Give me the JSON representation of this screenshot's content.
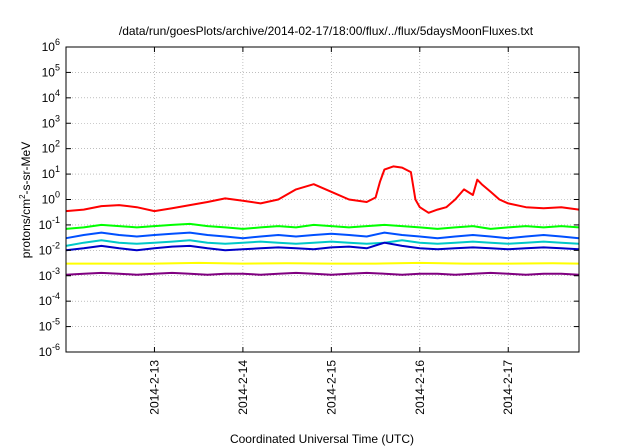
{
  "chart_data": {
    "type": "line",
    "title": "/data/run/goesPlots/archive/2014-02-17/18:00/flux/../flux/5daysMoonFluxes.txt",
    "xlabel": "Coordinated Universal Time (UTC)",
    "ylabel": {
      "base": "protons/cm",
      "sup": "2",
      "rest": "-s-sr-MeV"
    },
    "y_scale": "log",
    "ylim_exp": [
      -6,
      6
    ],
    "xlim_days": [
      12.0,
      17.8
    ],
    "x_ticks": [
      {
        "day": 13,
        "label": "2014-2-13"
      },
      {
        "day": 14,
        "label": "2014-2-14"
      },
      {
        "day": 15,
        "label": "2014-2-15"
      },
      {
        "day": 16,
        "label": "2014-2-16"
      },
      {
        "day": 17,
        "label": "2014-2-17"
      }
    ],
    "y_ticks": [
      {
        "exp": -6,
        "base": "10",
        "sup": "-6"
      },
      {
        "exp": -5,
        "base": "10",
        "sup": "-5"
      },
      {
        "exp": -4,
        "base": "10",
        "sup": "-4"
      },
      {
        "exp": -3,
        "base": "10",
        "sup": "-3"
      },
      {
        "exp": -2,
        "base": "10",
        "sup": "-2"
      },
      {
        "exp": -1,
        "base": "10",
        "sup": "-1"
      },
      {
        "exp": 0,
        "base": "10",
        "sup": "0"
      },
      {
        "exp": 1,
        "base": "10",
        "sup": "1"
      },
      {
        "exp": 2,
        "base": "10",
        "sup": "2"
      },
      {
        "exp": 3,
        "base": "10",
        "sup": "3"
      },
      {
        "exp": 4,
        "base": "10",
        "sup": "4"
      },
      {
        "exp": 5,
        "base": "10",
        "sup": "5"
      },
      {
        "exp": 6,
        "base": "10",
        "sup": "6"
      }
    ],
    "grid": true,
    "legend": "none",
    "series": [
      {
        "color": "#ff0000",
        "x": [
          12.0,
          12.2,
          12.4,
          12.6,
          12.8,
          13.0,
          13.2,
          13.4,
          13.6,
          13.8,
          14.0,
          14.2,
          14.4,
          14.6,
          14.8,
          15.0,
          15.2,
          15.4,
          15.5,
          15.55,
          15.6,
          15.7,
          15.8,
          15.9,
          15.95,
          16.0,
          16.1,
          16.2,
          16.3,
          16.4,
          16.5,
          16.6,
          16.65,
          16.7,
          16.8,
          16.9,
          17.0,
          17.2,
          17.4,
          17.6,
          17.8
        ],
        "y": [
          0.35,
          0.4,
          0.55,
          0.6,
          0.5,
          0.35,
          0.45,
          0.6,
          0.8,
          1.1,
          0.9,
          0.7,
          1.0,
          2.5,
          4.0,
          2.0,
          1.0,
          0.8,
          1.2,
          5.0,
          15,
          20,
          18,
          12,
          1.0,
          0.5,
          0.3,
          0.4,
          0.5,
          1.0,
          2.5,
          1.5,
          6.0,
          4.0,
          2.0,
          1.0,
          0.7,
          0.5,
          0.45,
          0.5,
          0.4
        ]
      },
      {
        "color": "#00ff00",
        "x": [
          12.0,
          12.2,
          12.4,
          12.6,
          12.8,
          13.0,
          13.2,
          13.4,
          13.6,
          13.8,
          14.0,
          14.2,
          14.4,
          14.6,
          14.8,
          15.0,
          15.2,
          15.4,
          15.6,
          15.8,
          16.0,
          16.2,
          16.4,
          16.6,
          16.8,
          17.0,
          17.2,
          17.4,
          17.6,
          17.8
        ],
        "y": [
          0.07,
          0.08,
          0.1,
          0.09,
          0.08,
          0.09,
          0.1,
          0.11,
          0.09,
          0.08,
          0.07,
          0.08,
          0.09,
          0.08,
          0.1,
          0.09,
          0.08,
          0.09,
          0.1,
          0.09,
          0.08,
          0.07,
          0.08,
          0.09,
          0.07,
          0.08,
          0.09,
          0.08,
          0.09,
          0.08
        ]
      },
      {
        "color": "#00c8c8",
        "x": [
          12.0,
          12.2,
          12.4,
          12.6,
          12.8,
          13.0,
          13.2,
          13.4,
          13.6,
          13.8,
          14.0,
          14.2,
          14.4,
          14.6,
          14.8,
          15.0,
          15.2,
          15.4,
          15.6,
          15.8,
          16.0,
          16.2,
          16.4,
          16.6,
          16.8,
          17.0,
          17.2,
          17.4,
          17.6,
          17.8
        ],
        "y": [
          0.015,
          0.02,
          0.025,
          0.02,
          0.018,
          0.02,
          0.022,
          0.025,
          0.02,
          0.018,
          0.02,
          0.022,
          0.02,
          0.018,
          0.02,
          0.022,
          0.02,
          0.018,
          0.02,
          0.025,
          0.02,
          0.018,
          0.02,
          0.022,
          0.02,
          0.018,
          0.02,
          0.022,
          0.02,
          0.018
        ]
      },
      {
        "color": "#0050ff",
        "x": [
          12.0,
          12.2,
          12.4,
          12.6,
          12.8,
          13.0,
          13.2,
          13.4,
          13.6,
          13.8,
          14.0,
          14.2,
          14.4,
          14.6,
          14.8,
          15.0,
          15.2,
          15.4,
          15.6,
          15.8,
          16.0,
          16.2,
          16.4,
          16.6,
          16.8,
          17.0,
          17.2,
          17.4,
          17.6,
          17.8
        ],
        "y": [
          0.03,
          0.04,
          0.05,
          0.04,
          0.035,
          0.04,
          0.045,
          0.05,
          0.04,
          0.035,
          0.03,
          0.035,
          0.04,
          0.035,
          0.04,
          0.045,
          0.04,
          0.035,
          0.05,
          0.04,
          0.035,
          0.03,
          0.035,
          0.04,
          0.035,
          0.03,
          0.035,
          0.04,
          0.035,
          0.03
        ]
      },
      {
        "color": "#0000c8",
        "x": [
          12.0,
          12.2,
          12.4,
          12.6,
          12.8,
          13.0,
          13.2,
          13.4,
          13.6,
          13.8,
          14.0,
          14.2,
          14.4,
          14.6,
          14.8,
          15.0,
          15.2,
          15.4,
          15.6,
          15.8,
          16.0,
          16.2,
          16.4,
          16.6,
          16.8,
          17.0,
          17.2,
          17.4,
          17.6,
          17.8
        ],
        "y": [
          0.01,
          0.012,
          0.015,
          0.012,
          0.01,
          0.012,
          0.014,
          0.015,
          0.012,
          0.01,
          0.011,
          0.012,
          0.013,
          0.012,
          0.011,
          0.013,
          0.014,
          0.012,
          0.02,
          0.015,
          0.012,
          0.011,
          0.012,
          0.013,
          0.012,
          0.011,
          0.012,
          0.013,
          0.012,
          0.011
        ]
      },
      {
        "color": "#ffff00",
        "x": [
          12.0,
          12.5,
          13.0,
          13.5,
          14.0,
          14.5,
          15.0,
          15.5,
          16.0,
          16.5,
          17.0,
          17.5,
          17.8
        ],
        "y": [
          0.003,
          0.003,
          0.003,
          0.0032,
          0.003,
          0.0031,
          0.003,
          0.003,
          0.0032,
          0.003,
          0.003,
          0.0031,
          0.003
        ]
      },
      {
        "color": "#800080",
        "x": [
          12.0,
          12.2,
          12.4,
          12.6,
          12.8,
          13.0,
          13.2,
          13.4,
          13.6,
          13.8,
          14.0,
          14.2,
          14.4,
          14.6,
          14.8,
          15.0,
          15.2,
          15.4,
          15.6,
          15.8,
          16.0,
          16.2,
          16.4,
          16.6,
          16.8,
          17.0,
          17.2,
          17.4,
          17.6,
          17.8
        ],
        "y": [
          0.0011,
          0.0012,
          0.0013,
          0.0012,
          0.0011,
          0.0012,
          0.0013,
          0.0012,
          0.0011,
          0.0012,
          0.0012,
          0.0011,
          0.0012,
          0.0013,
          0.0012,
          0.0011,
          0.0012,
          0.0013,
          0.0012,
          0.0011,
          0.0012,
          0.0012,
          0.0011,
          0.0012,
          0.0013,
          0.0012,
          0.0011,
          0.0012,
          0.0012,
          0.0011
        ]
      }
    ]
  }
}
